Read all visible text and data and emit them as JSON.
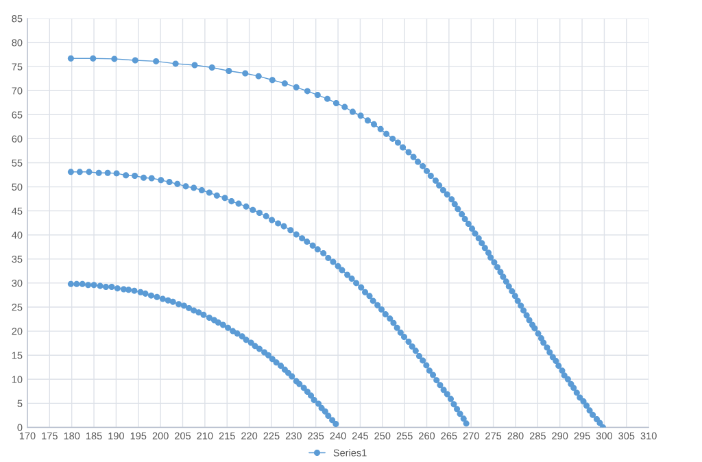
{
  "chart_data": {
    "type": "line",
    "xlim": [
      170,
      310
    ],
    "xticks": [
      170,
      175,
      180,
      185,
      190,
      195,
      200,
      205,
      210,
      215,
      220,
      225,
      230,
      235,
      240,
      245,
      250,
      255,
      260,
      265,
      270,
      275,
      280,
      285,
      290,
      295,
      300,
      305,
      310
    ],
    "ylim": [
      0,
      85
    ],
    "yticks": [
      0,
      5,
      10,
      15,
      20,
      25,
      30,
      35,
      40,
      45,
      50,
      55,
      60,
      65,
      70,
      75,
      80,
      85
    ],
    "grid": true,
    "legend": "bottom",
    "marker": "circle",
    "line_style": "solid",
    "series": [
      {
        "name": "Series1",
        "color": "#5b9bd5",
        "x": [
          179.8,
          181.1,
          182.4,
          183.7,
          185.0,
          186.4,
          187.7,
          189.0,
          190.3,
          191.7,
          192.8,
          194.1,
          195.5,
          196.6,
          197.9,
          199.2,
          200.5,
          201.7,
          202.8,
          204.1,
          205.3,
          206.4,
          207.5,
          208.6,
          209.7,
          211.0,
          212.1,
          213.0,
          214.1,
          215.2,
          216.3,
          217.3,
          218.4,
          219.3,
          220.4,
          221.3,
          222.3,
          223.4,
          224.3,
          225.2,
          226.1,
          227.1,
          228.0,
          228.8,
          229.6,
          230.6,
          231.3,
          232.3,
          233.1,
          233.9,
          234.6,
          235.6,
          236.3,
          237.1,
          237.8,
          238.7,
          239.5,
          null,
          179.8,
          181.8,
          183.9,
          186.1,
          188.1,
          190.1,
          192.2,
          194.2,
          196.2,
          198.0,
          200.1,
          202.0,
          203.8,
          205.7,
          207.5,
          209.3,
          211.0,
          212.7,
          214.5,
          216.0,
          217.6,
          219.3,
          220.8,
          222.3,
          223.8,
          225.1,
          226.5,
          227.8,
          229.3,
          230.6,
          231.9,
          233.0,
          234.3,
          235.4,
          236.7,
          237.8,
          238.9,
          240.0,
          240.9,
          242.1,
          243.1,
          244.1,
          245.2,
          246.1,
          247.1,
          247.9,
          248.9,
          249.8,
          250.7,
          251.7,
          252.5,
          253.3,
          254.1,
          254.9,
          255.9,
          256.7,
          257.5,
          258.3,
          259.1,
          259.9,
          260.6,
          261.4,
          262.2,
          263.0,
          263.8,
          264.6,
          265.4,
          266.1,
          266.8,
          267.5,
          268.3,
          268.9,
          null,
          179.8,
          184.8,
          189.6,
          194.3,
          199.0,
          203.4,
          207.7,
          211.6,
          215.4,
          219.1,
          222.1,
          225.2,
          228.0,
          230.6,
          233.1,
          235.4,
          237.6,
          239.6,
          241.5,
          243.3,
          245.1,
          246.7,
          248.1,
          249.6,
          250.9,
          252.3,
          253.5,
          254.6,
          255.9,
          257.0,
          258.0,
          259.1,
          260.0,
          260.9,
          262.0,
          262.8,
          263.7,
          264.6,
          265.6,
          266.3,
          267.0,
          267.9,
          268.6,
          269.4,
          270.2,
          270.9,
          271.7,
          272.4,
          273.1,
          273.9,
          274.4,
          275.2,
          275.9,
          276.6,
          277.2,
          277.9,
          278.5,
          279.2,
          279.9,
          280.5,
          281.2,
          281.8,
          282.5,
          283.1,
          283.8,
          284.3,
          285.1,
          285.8,
          286.3,
          287.1,
          287.7,
          288.4,
          289.1,
          289.7,
          290.5,
          291.0,
          291.8,
          292.5,
          293.1,
          293.8,
          294.5,
          295.3,
          296.0,
          296.7,
          297.4,
          298.3,
          299.0,
          299.7
        ],
        "values": [
          29.8,
          29.8,
          29.8,
          29.6,
          29.6,
          29.4,
          29.2,
          29.2,
          28.9,
          28.7,
          28.6,
          28.4,
          28.1,
          27.8,
          27.4,
          27.1,
          26.7,
          26.4,
          26.1,
          25.6,
          25.3,
          24.8,
          24.3,
          23.9,
          23.4,
          22.8,
          22.3,
          21.8,
          21.3,
          20.7,
          20.0,
          19.5,
          18.9,
          18.2,
          17.6,
          16.9,
          16.3,
          15.6,
          15.0,
          14.2,
          13.5,
          12.8,
          12.0,
          11.3,
          10.6,
          9.6,
          9.0,
          8.2,
          7.4,
          6.6,
          5.7,
          4.9,
          4.0,
          3.3,
          2.4,
          1.5,
          0.7,
          null,
          53.1,
          53.1,
          53.1,
          52.9,
          52.9,
          52.8,
          52.4,
          52.3,
          51.9,
          51.8,
          51.4,
          51.0,
          50.6,
          50.1,
          49.8,
          49.3,
          48.8,
          48.2,
          47.7,
          47.0,
          46.5,
          45.9,
          45.2,
          44.6,
          43.9,
          43.1,
          42.4,
          41.8,
          41.0,
          40.1,
          39.3,
          38.6,
          37.8,
          37.0,
          36.2,
          35.2,
          34.4,
          33.5,
          32.7,
          31.7,
          30.9,
          30.0,
          29.1,
          28.1,
          27.3,
          26.3,
          25.4,
          24.5,
          23.5,
          22.6,
          21.7,
          20.7,
          19.7,
          18.8,
          17.8,
          16.8,
          15.9,
          14.8,
          13.9,
          12.9,
          11.8,
          10.9,
          9.8,
          8.8,
          7.8,
          6.9,
          5.9,
          4.8,
          3.8,
          2.8,
          1.8,
          0.8,
          null,
          76.7,
          76.7,
          76.6,
          76.3,
          76.1,
          75.6,
          75.3,
          74.8,
          74.1,
          73.6,
          73.0,
          72.2,
          71.5,
          70.7,
          69.9,
          69.1,
          68.3,
          67.4,
          66.6,
          65.6,
          64.8,
          63.8,
          63.0,
          62.0,
          61.0,
          60.0,
          59.2,
          58.2,
          57.2,
          56.2,
          55.2,
          54.3,
          53.3,
          52.3,
          51.3,
          50.3,
          49.3,
          48.4,
          47.4,
          46.4,
          45.4,
          44.3,
          43.3,
          42.3,
          41.3,
          40.3,
          39.3,
          38.3,
          37.3,
          36.3,
          35.3,
          34.3,
          33.3,
          32.3,
          31.3,
          30.3,
          29.3,
          28.3,
          27.3,
          26.3,
          25.3,
          24.3,
          23.3,
          22.3,
          21.3,
          20.6,
          19.5,
          18.5,
          17.6,
          16.6,
          15.6,
          14.6,
          13.8,
          12.8,
          11.8,
          10.8,
          10.0,
          9.0,
          8.2,
          7.2,
          6.2,
          5.4,
          4.5,
          3.5,
          2.6,
          1.7,
          0.9,
          0.0
        ]
      }
    ]
  }
}
